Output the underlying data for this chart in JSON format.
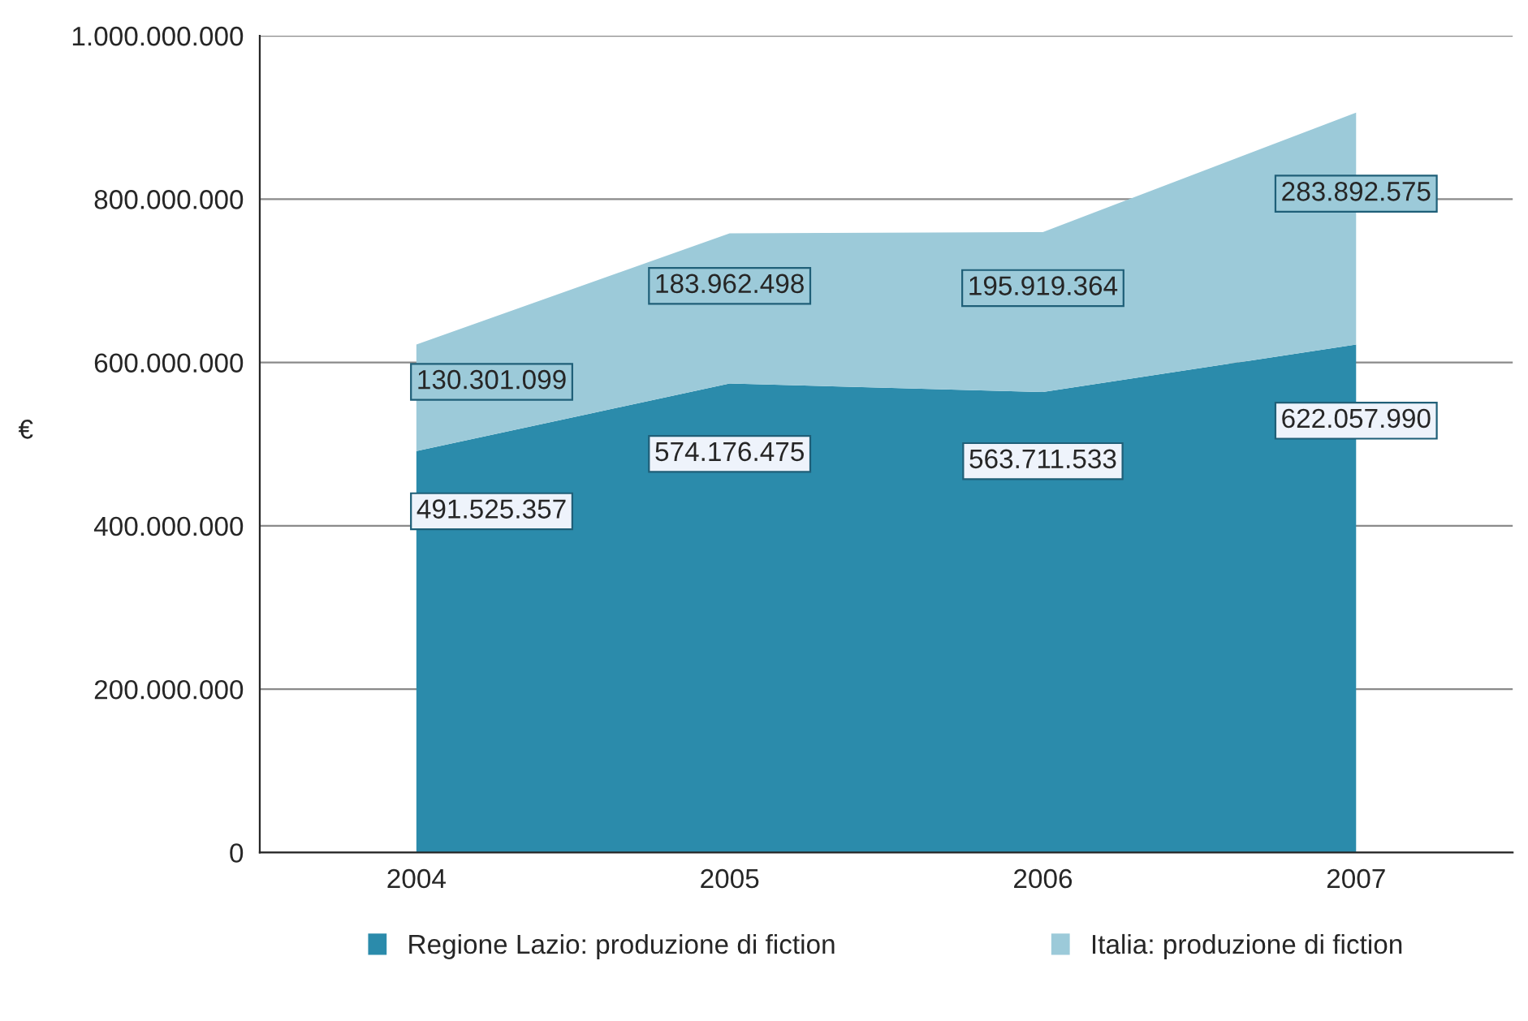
{
  "chart_data": {
    "type": "area",
    "stacked": true,
    "ylabel": "€",
    "categories": [
      "2004",
      "2005",
      "2006",
      "2007"
    ],
    "series": [
      {
        "name": "Regione Lazio: produzione di fiction",
        "color": "#2b8bab",
        "values": [
          491525357,
          574176475,
          563711533,
          622057990
        ],
        "value_labels": [
          "491.525.357",
          "574.176.475",
          "563.711.533",
          "622.057.990"
        ]
      },
      {
        "name": "Italia: produzione di fiction",
        "color": "#9ccad9",
        "values": [
          130301099,
          183962498,
          195919364,
          283892575
        ],
        "value_labels": [
          "130.301.099",
          "183.962.498",
          "195.919.364",
          "283.892.575"
        ]
      }
    ],
    "ylim": [
      0,
      1000000000
    ],
    "yticks": [
      {
        "value": 0,
        "label": "0"
      },
      {
        "value": 200000000,
        "label": "200.000.000"
      },
      {
        "value": 400000000,
        "label": "400.000.000"
      },
      {
        "value": 600000000,
        "label": "600.000.000"
      },
      {
        "value": 800000000,
        "label": "800.000.000"
      },
      {
        "value": 1000000000,
        "label": "1.000.000.000"
      }
    ],
    "grid": "y",
    "legend": "bottom"
  }
}
